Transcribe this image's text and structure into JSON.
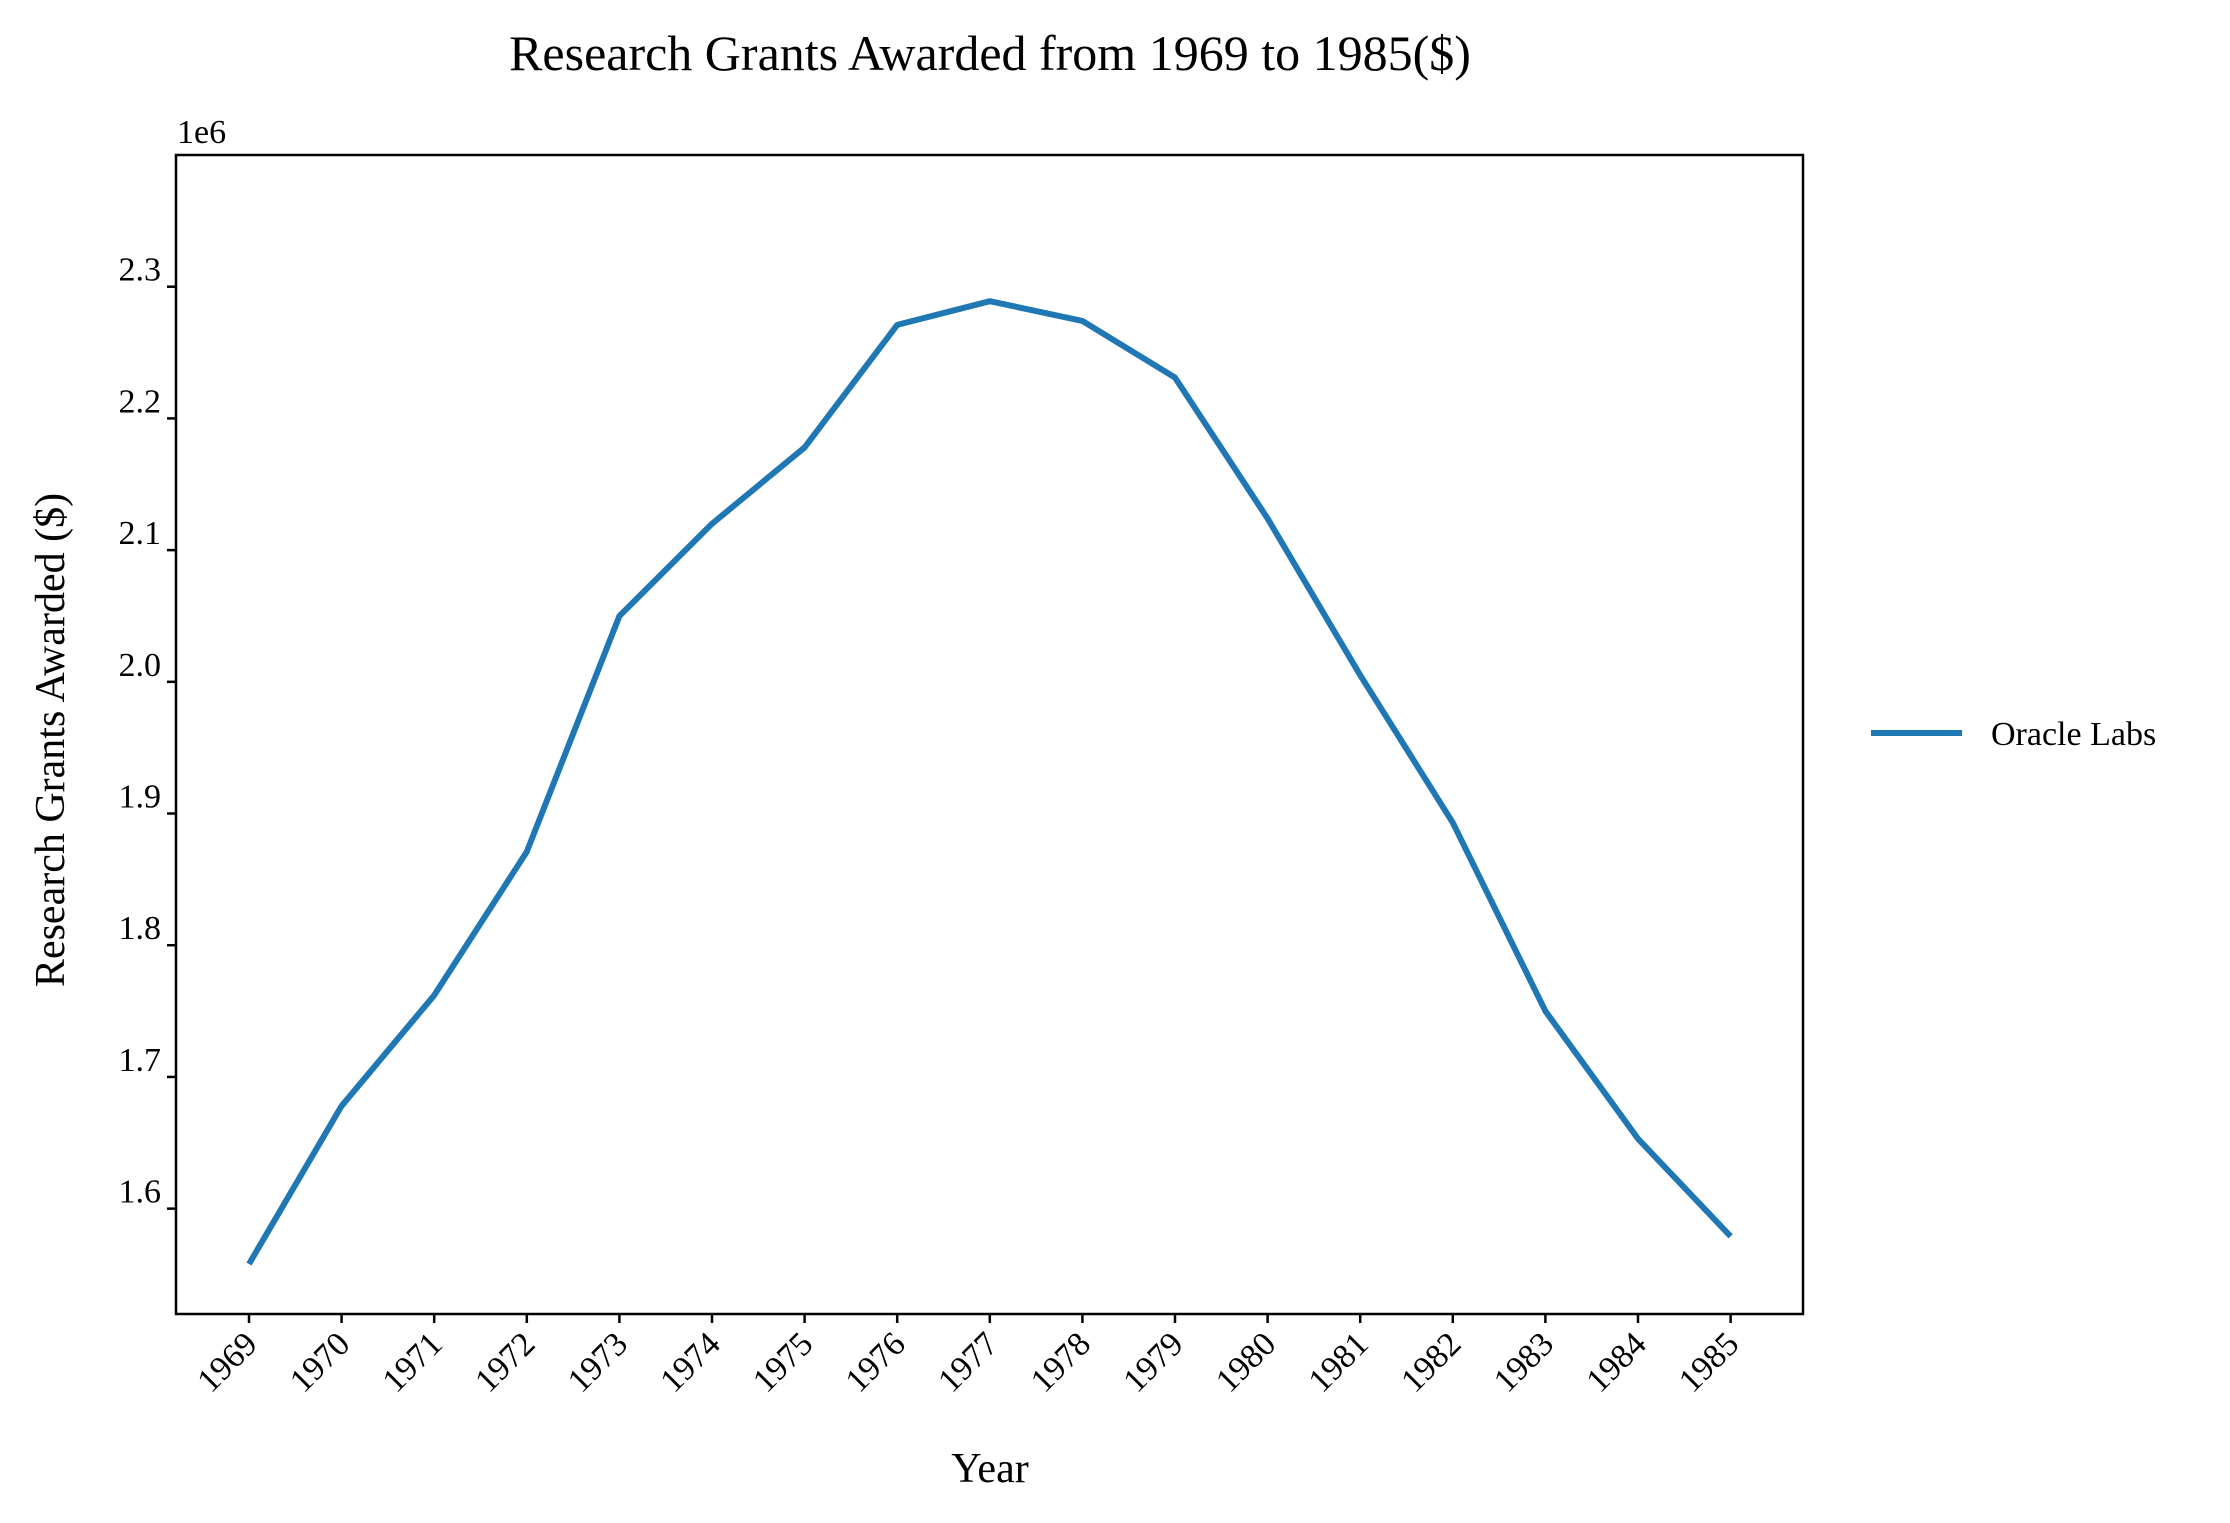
{
  "chart_data": {
    "type": "line",
    "title": "Research Grants Awarded from 1969 to 1985($)",
    "xlabel": "Year",
    "ylabel": "Research Grants Awarded ($)",
    "y_offset_label": "1e6",
    "x": [
      "1969",
      "1970",
      "1971",
      "1972",
      "1973",
      "1974",
      "1975",
      "1976",
      "1977",
      "1978",
      "1979",
      "1980",
      "1981",
      "1982",
      "1983",
      "1984",
      "1985"
    ],
    "yticks": [
      "1.6",
      "1.7",
      "1.8",
      "1.9",
      "2.0",
      "2.1",
      "2.2",
      "2.3"
    ],
    "ylim": [
      1520000,
      2400000
    ],
    "series": [
      {
        "name": "Oracle Labs",
        "color": "#1f77b4",
        "values": [
          1558000,
          1678000,
          1762000,
          1871000,
          2050000,
          2120000,
          2178000,
          2271000,
          2289000,
          2274000,
          2231000,
          2124000,
          2005000,
          1893000,
          1750000,
          1653000,
          1579000
        ]
      }
    ],
    "grid": false,
    "legend_position": "right, outside plot"
  }
}
